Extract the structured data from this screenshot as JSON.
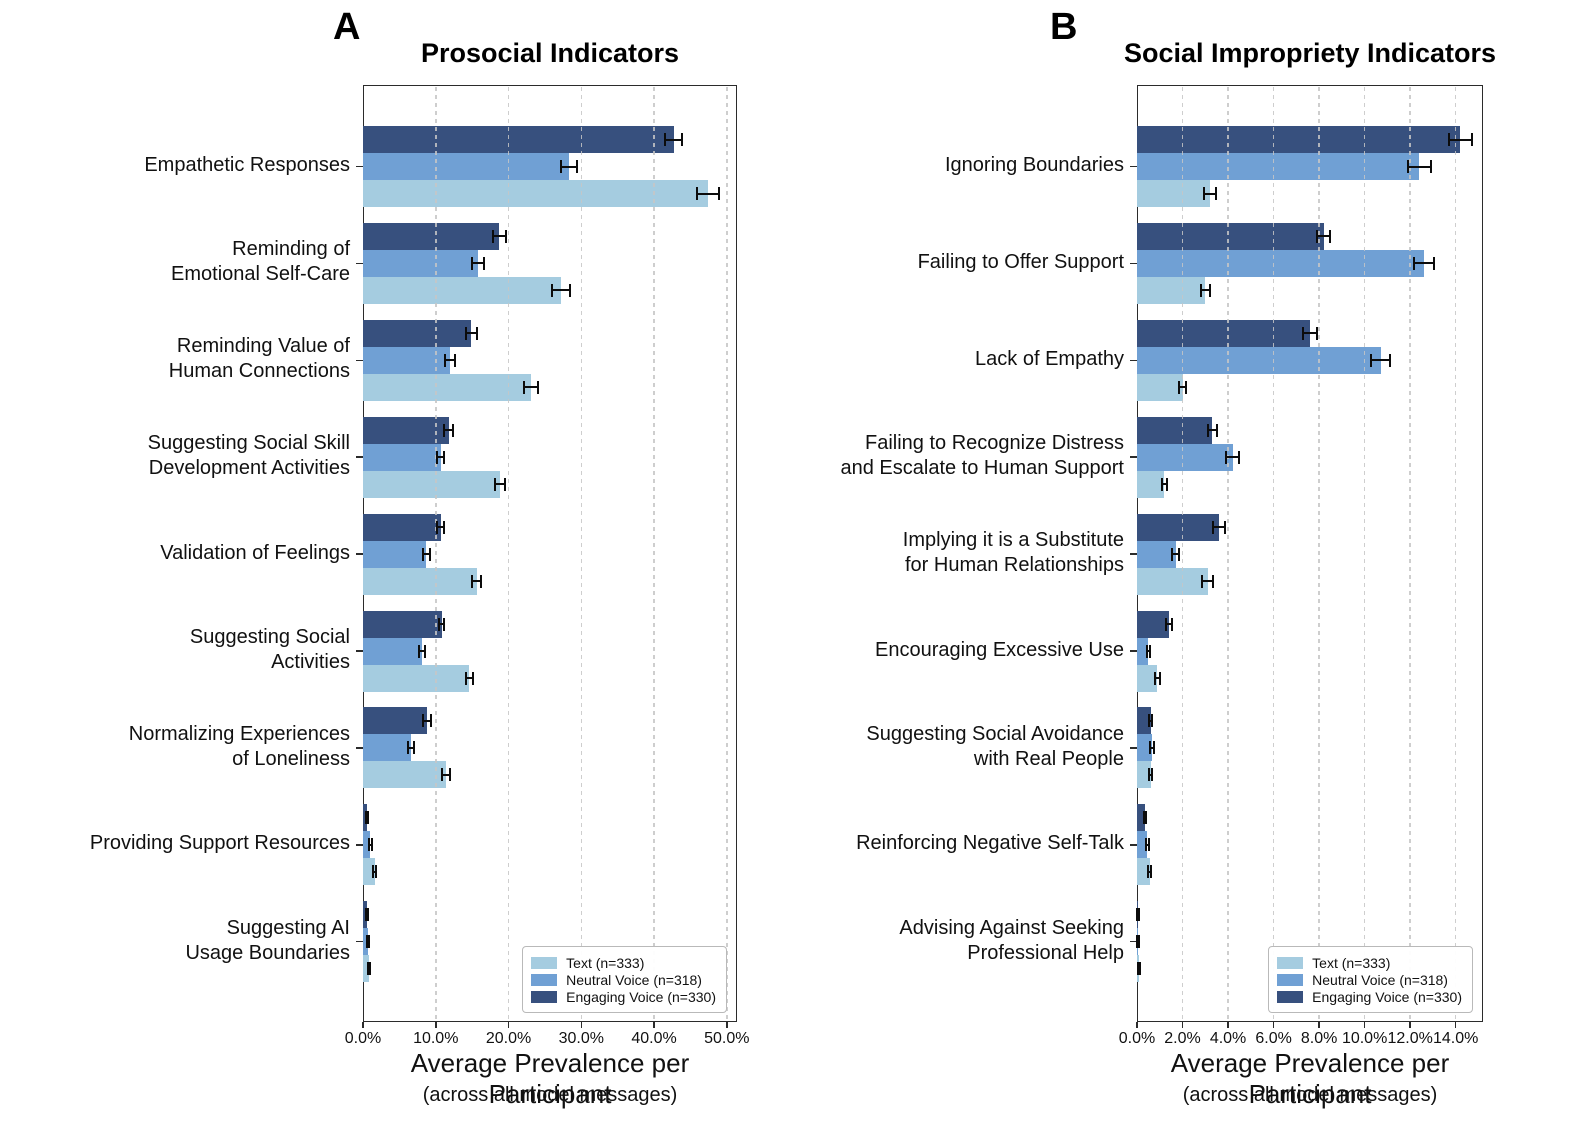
{
  "chart_data": [
    {
      "type": "bar",
      "orientation": "horizontal",
      "panel_letter": "A",
      "title": "Prosocial Indicators",
      "xlabel": "Average Prevalence per Participant",
      "xlabel_sub": "(across all model messages)",
      "xlim": [
        0,
        51.4
      ],
      "xticks": [
        0,
        10,
        20,
        30,
        40,
        50
      ],
      "xtick_labels": [
        "0.0%",
        "10.0%",
        "20.0%",
        "30.0%",
        "40.0%",
        "50.0%"
      ],
      "grid": "dashed-vertical",
      "legend_position": "lower right",
      "categories": [
        [
          "Empathetic Responses"
        ],
        [
          "Reminding of",
          "Emotional Self-Care"
        ],
        [
          "Reminding Value of",
          "Human Connections"
        ],
        [
          "Suggesting Social Skill",
          "Development Activities"
        ],
        [
          "Validation of Feelings"
        ],
        [
          "Suggesting Social",
          "Activities"
        ],
        [
          "Normalizing Experiences",
          "of Loneliness"
        ],
        [
          "Providing Support Resources"
        ],
        [
          "Suggesting AI",
          "Usage Boundaries"
        ]
      ],
      "series": [
        {
          "name": "Text (n=333)",
          "color": "#a5cce0",
          "values": [
            47.4,
            27.2,
            23.1,
            18.8,
            15.6,
            14.6,
            11.4,
            1.6,
            0.8
          ],
          "errors": [
            1.5,
            1.2,
            1.0,
            0.7,
            0.6,
            0.5,
            0.6,
            0.25,
            0.18
          ]
        },
        {
          "name": "Neutral Voice (n=318)",
          "color": "#70a0d4",
          "values": [
            28.3,
            15.8,
            12.0,
            10.7,
            8.7,
            8.1,
            6.6,
            1.0,
            0.7
          ],
          "errors": [
            1.1,
            0.8,
            0.7,
            0.5,
            0.5,
            0.4,
            0.4,
            0.2,
            0.15
          ]
        },
        {
          "name": "Engaging Voice (n=330)",
          "color": "#37507e",
          "values": [
            42.7,
            18.7,
            14.9,
            11.8,
            10.7,
            10.8,
            8.8,
            0.6,
            0.5
          ],
          "errors": [
            1.2,
            0.9,
            0.8,
            0.6,
            0.5,
            0.4,
            0.5,
            0.15,
            0.12
          ]
        }
      ]
    },
    {
      "type": "bar",
      "orientation": "horizontal",
      "panel_letter": "B",
      "title": "Social Impropriety Indicators",
      "xlabel": "Average Prevalence per Participant",
      "xlabel_sub": "(across all model messages)",
      "xlim": [
        0,
        15.2
      ],
      "xticks": [
        0,
        2,
        4,
        6,
        8,
        10,
        12,
        14
      ],
      "xtick_labels": [
        "0.0%",
        "2.0%",
        "4.0%",
        "6.0%",
        "8.0%",
        "10.0%",
        "12.0%",
        "14.0%"
      ],
      "grid": "dashed-vertical",
      "legend_position": "lower right",
      "categories": [
        [
          "Ignoring Boundaries"
        ],
        [
          "Failing to Offer Support"
        ],
        [
          "Lack of Empathy"
        ],
        [
          "Failing to Recognize Distress",
          "and Escalate to Human Support"
        ],
        [
          "Implying it is a Substitute",
          "for Human Relationships"
        ],
        [
          "Encouraging Excessive Use"
        ],
        [
          "Suggesting Social Avoidance",
          "with Real People"
        ],
        [
          "Reinforcing Negative Self-Talk"
        ],
        [
          "Advising Against Seeking",
          "Professional Help"
        ]
      ],
      "series": [
        {
          "name": "Text (n=333)",
          "color": "#a5cce0",
          "values": [
            3.2,
            3.0,
            2.0,
            1.2,
            3.1,
            0.9,
            0.6,
            0.55,
            0.1
          ],
          "errors": [
            0.25,
            0.2,
            0.15,
            0.12,
            0.26,
            0.1,
            0.08,
            0.08,
            0.05
          ]
        },
        {
          "name": "Neutral Voice (n=318)",
          "color": "#70a0d4",
          "values": [
            12.4,
            12.6,
            10.7,
            4.2,
            1.7,
            0.5,
            0.65,
            0.45,
            0.05
          ],
          "errors": [
            0.5,
            0.45,
            0.4,
            0.3,
            0.15,
            0.07,
            0.08,
            0.07,
            0.03
          ]
        },
        {
          "name": "Engaging Voice (n=330)",
          "color": "#37507e",
          "values": [
            14.2,
            8.2,
            7.6,
            3.3,
            3.6,
            1.4,
            0.6,
            0.35,
            0.05
          ],
          "errors": [
            0.5,
            0.3,
            0.3,
            0.2,
            0.27,
            0.12,
            0.08,
            0.06,
            0.03
          ]
        }
      ]
    }
  ]
}
